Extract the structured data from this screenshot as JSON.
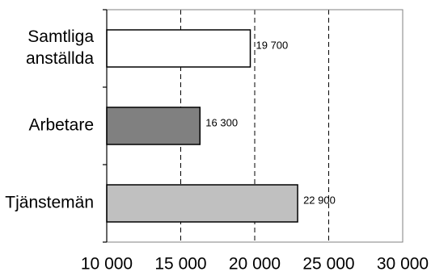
{
  "chart_data": {
    "type": "bar",
    "orientation": "horizontal",
    "title": "",
    "xlabel": "",
    "ylabel": "",
    "categories": [
      [
        "Samtliga",
        "anställda"
      ],
      [
        "Arbetare"
      ],
      [
        "Tjänstemän"
      ]
    ],
    "values": [
      19700,
      16300,
      22900
    ],
    "value_labels": [
      "19 700",
      "16 300",
      "22 900"
    ],
    "bar_colors": [
      "#ffffff",
      "#808080",
      "#c0c0c0"
    ],
    "xlim": [
      10000,
      30000
    ],
    "xticks": [
      10000,
      15000,
      20000,
      25000,
      30000
    ],
    "xtick_labels": [
      "10 000",
      "15 000",
      "20 000",
      "25 000",
      "30 000"
    ],
    "grid": "vertical dashed",
    "legend": "none"
  }
}
